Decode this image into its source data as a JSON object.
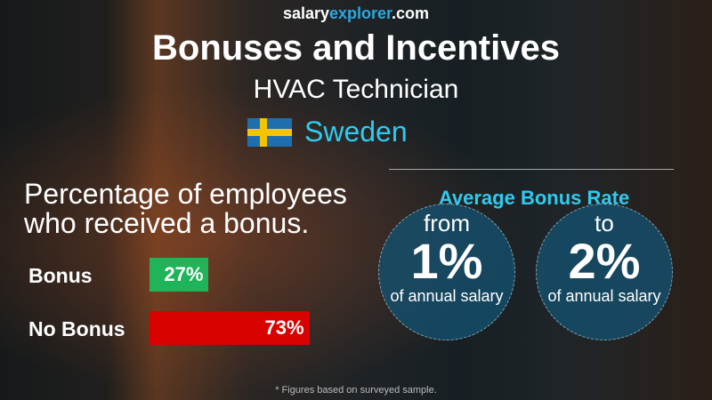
{
  "header": {
    "logo_salary": "salary",
    "logo_explorer": "explorer",
    "logo_com": ".com",
    "title": "Bonuses and Incentives",
    "job": "HVAC Technician",
    "country": "Sweden",
    "flag_icon": "sweden-flag"
  },
  "left": {
    "line1": "Percentage of employees",
    "line2": "who received a bonus."
  },
  "chart_data": {
    "type": "bar",
    "orientation": "horizontal",
    "categories": [
      "Bonus",
      "No Bonus"
    ],
    "values": [
      27,
      73
    ],
    "value_labels": [
      "27%",
      "73%"
    ],
    "colors": [
      "#1fb35a",
      "#d90000"
    ],
    "xlim": [
      0,
      100
    ]
  },
  "right": {
    "title": "Average Bonus Rate",
    "from_label": "from",
    "from_value": "1%",
    "to_label": "to",
    "to_value": "2%",
    "sub": "of annual salary"
  },
  "footnote": "* Figures based on surveyed sample."
}
